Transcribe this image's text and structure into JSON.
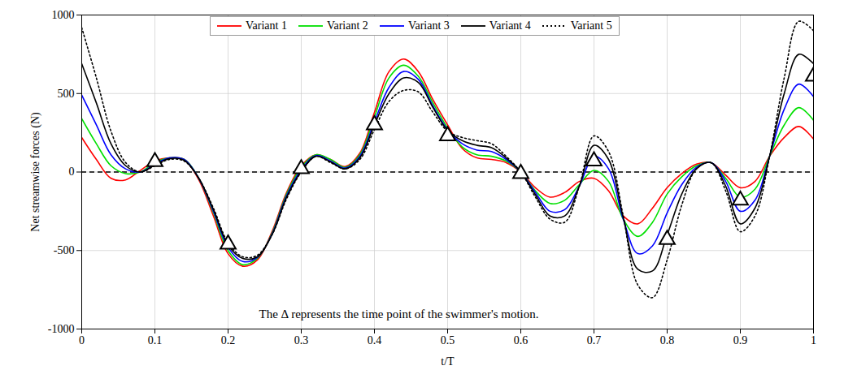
{
  "chart_data": {
    "type": "line",
    "x_label": "t/T",
    "y_label": "Net streamwise forces (N)",
    "annotation": "The Δ represents the time point of the swimmer's motion.",
    "xlim": [
      0,
      1
    ],
    "xticks": [
      0,
      0.1,
      0.2,
      0.3,
      0.4,
      0.5,
      0.6,
      0.7,
      0.8,
      0.9,
      1
    ],
    "ylim": [
      -1000,
      1000
    ],
    "yticks": [
      -1000,
      -500,
      0,
      500,
      1000
    ],
    "grid": true,
    "legend": "top",
    "hlines": [
      0
    ],
    "x": [
      0,
      0.02,
      0.04,
      0.06,
      0.08,
      0.1,
      0.12,
      0.14,
      0.16,
      0.18,
      0.2,
      0.22,
      0.24,
      0.26,
      0.28,
      0.3,
      0.32,
      0.34,
      0.36,
      0.38,
      0.4,
      0.42,
      0.44,
      0.46,
      0.48,
      0.5,
      0.52,
      0.54,
      0.56,
      0.58,
      0.6,
      0.62,
      0.64,
      0.66,
      0.68,
      0.7,
      0.72,
      0.74,
      0.76,
      0.78,
      0.8,
      0.82,
      0.84,
      0.86,
      0.88,
      0.9,
      0.92,
      0.94,
      0.96,
      0.98,
      1
    ],
    "series": [
      {
        "name": "Variant 1",
        "color": "#ff0000",
        "line_style": "solid",
        "values": [
          220,
          80,
          -40,
          -50,
          10,
          70,
          90,
          80,
          -50,
          -280,
          -520,
          -600,
          -560,
          -380,
          -130,
          40,
          110,
          80,
          35,
          120,
          380,
          640,
          720,
          640,
          460,
          300,
          150,
          90,
          80,
          60,
          0,
          -100,
          -160,
          -130,
          -60,
          -40,
          -120,
          -280,
          -330,
          -230,
          -100,
          -10,
          50,
          60,
          -20,
          -100,
          -60,
          100,
          220,
          290,
          210
        ]
      },
      {
        "name": "Variant 2",
        "color": "#00e000",
        "line_style": "solid",
        "values": [
          340,
          180,
          40,
          -10,
          0,
          60,
          90,
          80,
          -40,
          -260,
          -500,
          -590,
          -550,
          -390,
          -140,
          30,
          110,
          80,
          30,
          110,
          350,
          600,
          680,
          610,
          440,
          280,
          160,
          110,
          100,
          70,
          0,
          -120,
          -200,
          -180,
          -80,
          10,
          -60,
          -300,
          -410,
          -320,
          -140,
          -30,
          40,
          60,
          -40,
          -160,
          -110,
          100,
          300,
          410,
          330
        ]
      },
      {
        "name": "Variant 3",
        "color": "#0000ff",
        "line_style": "solid",
        "values": [
          490,
          300,
          110,
          20,
          0,
          50,
          90,
          80,
          -40,
          -250,
          -480,
          -570,
          -545,
          -395,
          -150,
          15,
          105,
          70,
          25,
          100,
          320,
          540,
          640,
          590,
          420,
          270,
          180,
          140,
          130,
          80,
          0,
          -130,
          -250,
          -240,
          -90,
          100,
          20,
          -300,
          -520,
          -470,
          -260,
          -80,
          30,
          60,
          -60,
          -250,
          -180,
          100,
          400,
          560,
          480
        ]
      },
      {
        "name": "Variant 4",
        "color": "#000000",
        "line_style": "solid",
        "values": [
          690,
          440,
          180,
          40,
          0,
          45,
          85,
          75,
          -40,
          -240,
          -465,
          -550,
          -540,
          -400,
          -160,
          5,
          100,
          65,
          20,
          90,
          300,
          500,
          600,
          570,
          410,
          265,
          200,
          170,
          155,
          90,
          0,
          -145,
          -280,
          -280,
          -90,
          170,
          80,
          -290,
          -620,
          -630,
          -400,
          -140,
          20,
          60,
          -90,
          -330,
          -230,
          100,
          500,
          750,
          690
        ]
      },
      {
        "name": "Variant 5",
        "color": "#000000",
        "line_style": "dotted",
        "values": [
          920,
          600,
          260,
          60,
          0,
          40,
          80,
          70,
          -40,
          -230,
          -450,
          -540,
          -530,
          -400,
          -170,
          0,
          100,
          60,
          20,
          80,
          270,
          450,
          520,
          510,
          380,
          260,
          220,
          200,
          180,
          100,
          0,
          -160,
          -300,
          -320,
          -90,
          230,
          130,
          -280,
          -720,
          -800,
          -560,
          -210,
          20,
          60,
          -120,
          -380,
          -280,
          100,
          600,
          960,
          900
        ]
      }
    ],
    "motion_points": {
      "marker": "triangle",
      "x": [
        0.1,
        0.2,
        0.3,
        0.4,
        0.5,
        0.6,
        0.7,
        0.8,
        0.9,
        1
      ],
      "values": [
        65,
        -460,
        20,
        300,
        230,
        -10,
        70,
        -430,
        -180,
        610
      ]
    }
  }
}
